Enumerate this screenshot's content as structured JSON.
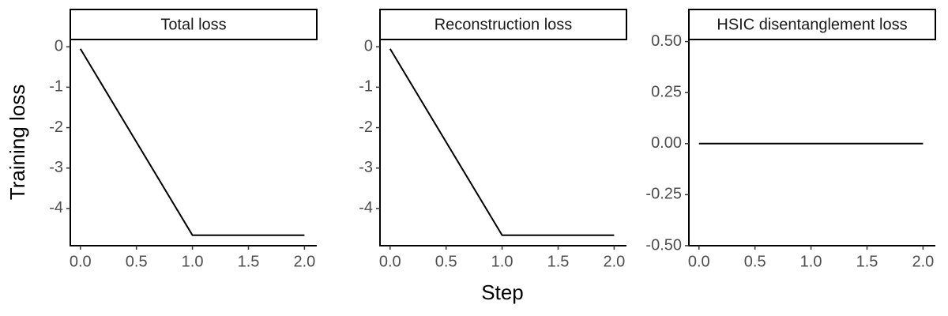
{
  "chart_data": [
    {
      "type": "line",
      "title": "Total loss",
      "ylabel": "Training loss",
      "x": [
        0,
        1,
        2
      ],
      "values": [
        -0.05,
        -4.66,
        -4.66
      ],
      "color": "#000000",
      "xlim": [
        -0.09,
        2.11
      ],
      "xticks": [
        {
          "value": 0,
          "label": "0.0"
        },
        {
          "value": 0.5,
          "label": "0.5"
        },
        {
          "value": 1,
          "label": "1.0"
        },
        {
          "value": 1.5,
          "label": "1.5"
        },
        {
          "value": 2,
          "label": "2.0"
        }
      ],
      "ylim": [
        -4.92,
        0.18
      ],
      "yticks": [
        0,
        -1,
        -2,
        -3,
        -4
      ]
    },
    {
      "type": "line",
      "title": "Reconstruction loss",
      "xlabel": "Step",
      "x": [
        0,
        1,
        2
      ],
      "values": [
        -0.05,
        -4.66,
        -4.66
      ],
      "color": "#000000",
      "xlim": [
        -0.09,
        2.11
      ],
      "xticks": [
        {
          "value": 0,
          "label": "0.0"
        },
        {
          "value": 0.5,
          "label": "0.5"
        },
        {
          "value": 1,
          "label": "1.0"
        },
        {
          "value": 1.5,
          "label": "1.5"
        },
        {
          "value": 2,
          "label": "2.0"
        }
      ],
      "ylim": [
        -4.92,
        0.18
      ],
      "yticks": [
        0,
        -1,
        -2,
        -3,
        -4
      ]
    },
    {
      "type": "line",
      "title": "HSIC disentanglement loss",
      "x": [
        0,
        1,
        2
      ],
      "values": [
        0,
        0,
        0
      ],
      "color": "#000000",
      "xlim": [
        -0.09,
        2.11
      ],
      "xticks": [
        {
          "value": 0,
          "label": "0.0"
        },
        {
          "value": 0.5,
          "label": "0.5"
        },
        {
          "value": 1,
          "label": "1.0"
        },
        {
          "value": 1.5,
          "label": "1.5"
        },
        {
          "value": 2,
          "label": "2.0"
        }
      ],
      "ylim": [
        -0.5,
        0.51
      ],
      "yticks": [
        {
          "value": 0.5,
          "label": "0.50"
        },
        {
          "value": 0.25,
          "label": "0.25"
        },
        {
          "value": 0,
          "label": "0.00"
        },
        {
          "value": -0.25,
          "label": "-0.25"
        },
        {
          "value": -0.5,
          "label": "-0.50"
        }
      ]
    }
  ]
}
